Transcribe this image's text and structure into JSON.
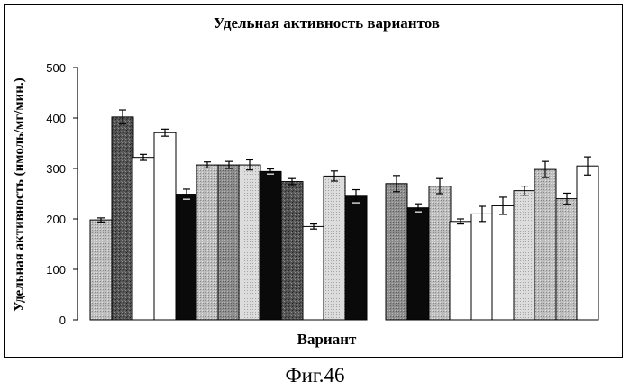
{
  "chart_data": {
    "type": "bar",
    "title": "Удельная активность вариантов",
    "xlabel": "Вариант",
    "ylabel": "Удельная активность (нмоль/мг/мин.)",
    "ylim": [
      0,
      500
    ],
    "yticks": [
      0,
      100,
      200,
      300,
      400,
      500
    ],
    "grid": false,
    "legend": "none",
    "bars": [
      {
        "value": 198,
        "error": 4,
        "fill": "light-gray"
      },
      {
        "value": 402,
        "error": 14,
        "fill": "dark-mottled"
      },
      {
        "value": 322,
        "error": 6,
        "fill": "white"
      },
      {
        "value": 371,
        "error": 7,
        "fill": "white"
      },
      {
        "value": 249,
        "error": 10,
        "fill": "black"
      },
      {
        "value": 307,
        "error": 6,
        "fill": "light-gray"
      },
      {
        "value": 307,
        "error": 7,
        "fill": "mid-gray"
      },
      {
        "value": 307,
        "error": 10,
        "fill": "lighter-gray"
      },
      {
        "value": 294,
        "error": 5,
        "fill": "black"
      },
      {
        "value": 274,
        "error": 6,
        "fill": "dark-mottled"
      },
      {
        "value": 185,
        "error": 5,
        "fill": "white"
      },
      {
        "value": 285,
        "error": 10,
        "fill": "lighter-gray"
      },
      {
        "value": 245,
        "error": 13,
        "fill": "black"
      },
      {
        "value": 270,
        "error": 16,
        "fill": "mid-gray"
      },
      {
        "value": 222,
        "error": 8,
        "fill": "black"
      },
      {
        "value": 265,
        "error": 15,
        "fill": "light-gray"
      },
      {
        "value": 195,
        "error": 5,
        "fill": "white"
      },
      {
        "value": 210,
        "error": 15,
        "fill": "white"
      },
      {
        "value": 226,
        "error": 17,
        "fill": "white"
      },
      {
        "value": 256,
        "error": 9,
        "fill": "lighter-gray"
      },
      {
        "value": 298,
        "error": 16,
        "fill": "light-gray"
      },
      {
        "value": 240,
        "error": 11,
        "fill": "light-gray"
      },
      {
        "value": 305,
        "error": 18,
        "fill": "white"
      }
    ]
  },
  "fills": {
    "white": "#ffffff",
    "black": "#0a0a0a",
    "light-gray": "#a9a9a9",
    "lighter-gray": "#d2d2d2",
    "mid-gray": "#858585",
    "dark-mottled": "#4a4a4a"
  },
  "caption": "Фиг.46"
}
